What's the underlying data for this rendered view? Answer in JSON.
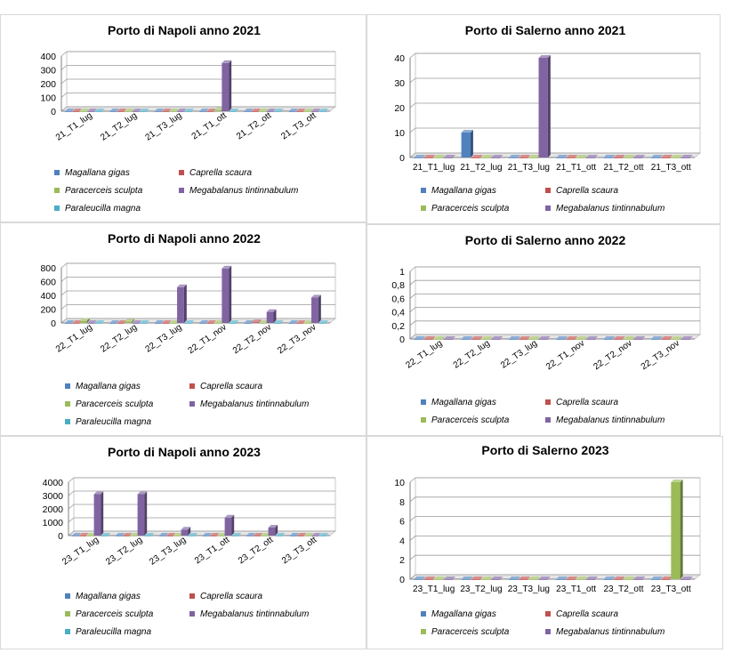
{
  "chart_data": [
    {
      "type": "bar",
      "title": "Porto di Napoli anno 2021",
      "categories": [
        "21_T1_lug",
        "21_T2_lug",
        "21_T3_lug",
        "21_T1_ott",
        "21_T2_ott",
        "21_T3_ott"
      ],
      "ylim": [
        0,
        400
      ],
      "yticks": [
        "0",
        "100",
        "200",
        "300",
        "400"
      ],
      "series": [
        {
          "name": "Magallana gigas",
          "color": "#4f81bd",
          "values": [
            0,
            0,
            0,
            0,
            0,
            0
          ]
        },
        {
          "name": "Caprella scaura",
          "color": "#c0504d",
          "values": [
            0,
            0,
            0,
            0,
            0,
            0
          ]
        },
        {
          "name": "Paracerceis sculpta",
          "color": "#9bbb59",
          "values": [
            0,
            0,
            0,
            8,
            0,
            0
          ]
        },
        {
          "name": "Megabalanus tintinnabulum",
          "color": "#8064a2",
          "values": [
            0,
            0,
            0,
            350,
            0,
            0
          ]
        },
        {
          "name": "Paraleucilla magna",
          "color": "#4bacc6",
          "values": [
            0,
            0,
            0,
            0,
            0,
            0
          ]
        }
      ]
    },
    {
      "type": "bar",
      "title": "Porto di Salerno  anno 2021",
      "categories": [
        "21_T1_lug",
        "21_T2_lug",
        "21_T3_lug",
        "21_T1_ott",
        "21_T2_ott",
        "21_T3_ott"
      ],
      "ylim": [
        0,
        40
      ],
      "yticks": [
        "0",
        "10",
        "20",
        "30",
        "40"
      ],
      "series": [
        {
          "name": "Magallana gigas",
          "color": "#4f81bd",
          "values": [
            0,
            10,
            0,
            0,
            0,
            0
          ]
        },
        {
          "name": "Caprella scaura",
          "color": "#c0504d",
          "values": [
            0,
            0,
            0,
            0,
            0,
            0
          ]
        },
        {
          "name": "Paracerceis sculpta",
          "color": "#9bbb59",
          "values": [
            0,
            0,
            0,
            0,
            0,
            0
          ]
        },
        {
          "name": "Megabalanus tintinnabulum",
          "color": "#8064a2",
          "values": [
            0,
            0,
            40,
            0,
            0,
            0
          ]
        }
      ]
    },
    {
      "type": "bar",
      "title": "Porto di Napoli anno 2022",
      "categories": [
        "22_T1_lug",
        "22_T2_lug",
        "22_T3_lug",
        "22_T1_nov",
        "22_T2_nov",
        "22_T3_nov"
      ],
      "ylim": [
        0,
        800
      ],
      "yticks": [
        "0",
        "200",
        "400",
        "600",
        "800"
      ],
      "series": [
        {
          "name": "Magallana gigas",
          "color": "#4f81bd",
          "values": [
            0,
            0,
            0,
            0,
            0,
            0
          ]
        },
        {
          "name": "Caprella scaura",
          "color": "#c0504d",
          "values": [
            0,
            0,
            0,
            0,
            10,
            0
          ]
        },
        {
          "name": "Paracerceis sculpta",
          "color": "#9bbb59",
          "values": [
            30,
            20,
            0,
            0,
            0,
            0
          ]
        },
        {
          "name": "Megabalanus tintinnabulum",
          "color": "#8064a2",
          "values": [
            0,
            0,
            520,
            790,
            160,
            370
          ]
        },
        {
          "name": "Paraleucilla magna",
          "color": "#4bacc6",
          "values": [
            0,
            0,
            0,
            0,
            0,
            0
          ]
        }
      ]
    },
    {
      "type": "bar",
      "title": "Porto di Salerno anno 2022",
      "categories": [
        "22_T1_lug",
        "22_T2_lug",
        "22_T3_lug",
        "22_T1_nov",
        "22_T2_nov",
        "22_T3_nov"
      ],
      "ylim": [
        0,
        1
      ],
      "yticks": [
        "0",
        "0,2",
        "0,4",
        "0,6",
        "0,8",
        "1"
      ],
      "series": [
        {
          "name": "Magallana gigas",
          "color": "#4f81bd",
          "values": [
            0,
            0,
            0,
            0,
            0,
            0
          ]
        },
        {
          "name": "Caprella scaura",
          "color": "#c0504d",
          "values": [
            0,
            0,
            0,
            0,
            0,
            0
          ]
        },
        {
          "name": "Paracerceis sculpta",
          "color": "#9bbb59",
          "values": [
            0,
            0,
            0,
            0,
            0,
            0
          ]
        },
        {
          "name": "Megabalanus tintinnabulum",
          "color": "#8064a2",
          "values": [
            0,
            0,
            0,
            0,
            0,
            0
          ]
        }
      ]
    },
    {
      "type": "bar",
      "title": "Porto di Napoli anno 2023",
      "categories": [
        "23_T1_lug",
        "23_T2_lug",
        "23_T3_lug",
        "23_T1_ott",
        "23_T2_ott",
        "23_T3_ott"
      ],
      "ylim": [
        0,
        4000
      ],
      "yticks": [
        "0",
        "1000",
        "2000",
        "3000",
        "4000"
      ],
      "series": [
        {
          "name": "Magallana gigas",
          "color": "#4f81bd",
          "values": [
            0,
            0,
            0,
            0,
            0,
            0
          ]
        },
        {
          "name": "Caprella scaura",
          "color": "#c0504d",
          "values": [
            0,
            0,
            0,
            0,
            0,
            0
          ]
        },
        {
          "name": "Paracerceis sculpta",
          "color": "#9bbb59",
          "values": [
            0,
            0,
            0,
            0,
            0,
            0
          ]
        },
        {
          "name": "Megabalanus tintinnabulum",
          "color": "#8064a2",
          "values": [
            3100,
            3100,
            450,
            1350,
            600,
            0
          ]
        },
        {
          "name": "Paraleucilla magna",
          "color": "#4bacc6",
          "values": [
            0,
            0,
            0,
            0,
            0,
            0
          ]
        }
      ]
    },
    {
      "type": "bar",
      "title": "Porto di Salerno 2023",
      "categories": [
        "23_T1_lug",
        "23_T2_lug",
        "23_T3_lug",
        "23_T1_ott",
        "23_T2_ott",
        "23_T3_ott"
      ],
      "ylim": [
        0,
        10
      ],
      "yticks": [
        "0",
        "2",
        "4",
        "6",
        "8",
        "10"
      ],
      "series": [
        {
          "name": "Magallana gigas",
          "color": "#4f81bd",
          "values": [
            0,
            0,
            0,
            0,
            0,
            0
          ]
        },
        {
          "name": "Caprella scaura",
          "color": "#c0504d",
          "values": [
            0,
            0,
            0,
            0,
            0,
            0
          ]
        },
        {
          "name": "Paracerceis sculpta",
          "color": "#9bbb59",
          "values": [
            0,
            0,
            0,
            0,
            0,
            10
          ]
        },
        {
          "name": "Megabalanus tintinnabulum",
          "color": "#8064a2",
          "values": [
            0,
            0,
            0,
            0,
            0,
            0
          ]
        }
      ]
    }
  ]
}
